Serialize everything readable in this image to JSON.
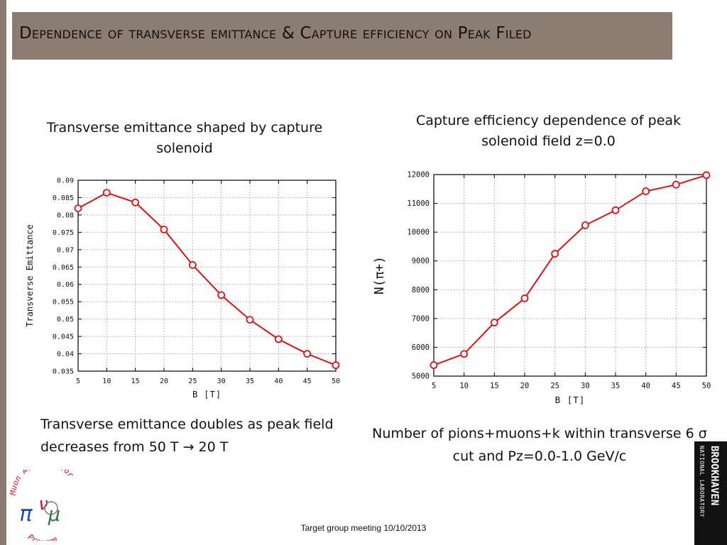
{
  "slide": {
    "title": "Dependence of transverse emittance & Capture efficiency on Peak Filed",
    "footer": "Target group meeting 10/10/2013",
    "note_left": "Transverse emittance doubles as peak field decreases from 50 T → 20 T",
    "note_right": "Number of pions+muons+k within transverse 6 σ cut and Pz=0.0-1.0 GeV/c",
    "colors": {
      "accent_bar": "#8a7a6f",
      "title_bar": "#8c7d72",
      "series": "#dd1111"
    },
    "logo_left": {
      "top_text": "Muon Accelerator",
      "bottom_text": "Program",
      "icon": "map-logo-icon"
    },
    "logo_right": {
      "line1": "BROOKHAVEN",
      "line2": "NATIONAL LABORATORY",
      "icon": "bnl-logo-icon"
    }
  },
  "chart_data": [
    {
      "type": "line",
      "title": "Transverse emittance shaped by capture solenoid",
      "xlabel": "B [T]",
      "ylabel": "Transverse Emittance",
      "x": [
        5,
        10,
        15,
        20,
        25,
        30,
        35,
        40,
        45,
        50
      ],
      "xticks": [
        "5",
        "10",
        "15",
        "20",
        "25",
        "30",
        "35",
        "40",
        "45",
        "50"
      ],
      "yticks": [
        "0.035",
        "0.04",
        "0.045",
        "0.05",
        "0.055",
        "0.06",
        "0.065",
        "0.07",
        "0.075",
        "0.08",
        "0.085",
        "0.09"
      ],
      "xlim": [
        5,
        50
      ],
      "ylim": [
        0.035,
        0.09
      ],
      "grid": true,
      "series": [
        {
          "values": [
            0.0819,
            0.0864,
            0.0836,
            0.0758,
            0.0656,
            0.0569,
            0.0498,
            0.0442,
            0.04,
            0.0367
          ]
        }
      ]
    },
    {
      "type": "line",
      "title": "Capture efficiency dependence of peak solenoid field  z=0.0",
      "xlabel": "B [T]",
      "ylabel": "N(π+)",
      "x": [
        5,
        10,
        15,
        20,
        25,
        30,
        35,
        40,
        45,
        50
      ],
      "xticks": [
        "5",
        "10",
        "15",
        "20",
        "25",
        "30",
        "35",
        "40",
        "45",
        "50"
      ],
      "yticks": [
        "5000",
        "6000",
        "7000",
        "8000",
        "9000",
        "10000",
        "11000",
        "12000"
      ],
      "xlim": [
        5,
        50
      ],
      "ylim": [
        5000,
        12000
      ],
      "grid": true,
      "series": [
        {
          "values": [
            5380,
            5770,
            6860,
            7700,
            9250,
            10240,
            10760,
            11420,
            11650,
            11980
          ]
        }
      ]
    }
  ]
}
